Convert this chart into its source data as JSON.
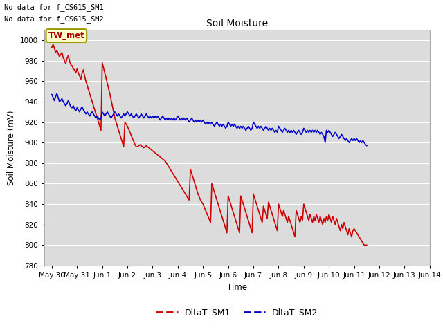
{
  "title": "Soil Moisture",
  "ylabel": "Soil Moisture (mV)",
  "xlabel": "Time",
  "ylim": [
    780,
    1010
  ],
  "yticks": [
    780,
    800,
    820,
    840,
    860,
    880,
    900,
    920,
    940,
    960,
    980,
    1000
  ],
  "bg_color": "#dcdcdc",
  "annotations": [
    "No data for f_CS615_SM1",
    "No data for f_CS615_SM2"
  ],
  "legend_label": "TW_met",
  "line1_label": "DltaT_SM1",
  "line2_label": "DltaT_SM2",
  "line1_color": "#cc0000",
  "line2_color": "#0000cc",
  "sm1_data": [
    [
      0.0,
      993
    ],
    [
      0.05,
      996
    ],
    [
      0.1,
      992
    ],
    [
      0.15,
      988
    ],
    [
      0.2,
      990
    ],
    [
      0.25,
      987
    ],
    [
      0.3,
      984
    ],
    [
      0.35,
      986
    ],
    [
      0.4,
      988
    ],
    [
      0.45,
      983
    ],
    [
      0.5,
      980
    ],
    [
      0.55,
      977
    ],
    [
      0.6,
      982
    ],
    [
      0.65,
      985
    ],
    [
      0.7,
      980
    ],
    [
      0.75,
      976
    ],
    [
      0.8,
      975
    ],
    [
      0.85,
      972
    ],
    [
      0.9,
      971
    ],
    [
      0.95,
      968
    ],
    [
      1.0,
      972
    ],
    [
      1.05,
      968
    ],
    [
      1.1,
      965
    ],
    [
      1.15,
      962
    ],
    [
      1.2,
      968
    ],
    [
      1.25,
      971
    ],
    [
      1.3,
      965
    ],
    [
      1.35,
      960
    ],
    [
      1.4,
      956
    ],
    [
      1.45,
      952
    ],
    [
      1.5,
      948
    ],
    [
      1.55,
      944
    ],
    [
      1.6,
      940
    ],
    [
      1.65,
      936
    ],
    [
      1.7,
      932
    ],
    [
      1.75,
      928
    ],
    [
      1.8,
      924
    ],
    [
      1.85,
      920
    ],
    [
      1.9,
      916
    ],
    [
      1.95,
      912
    ],
    [
      2.0,
      978
    ],
    [
      2.05,
      973
    ],
    [
      2.1,
      968
    ],
    [
      2.15,
      963
    ],
    [
      2.2,
      958
    ],
    [
      2.25,
      953
    ],
    [
      2.3,
      948
    ],
    [
      2.35,
      942
    ],
    [
      2.4,
      936
    ],
    [
      2.45,
      930
    ],
    [
      2.5,
      924
    ],
    [
      2.55,
      920
    ],
    [
      2.6,
      916
    ],
    [
      2.65,
      912
    ],
    [
      2.7,
      908
    ],
    [
      2.75,
      904
    ],
    [
      2.8,
      900
    ],
    [
      2.85,
      896
    ],
    [
      2.9,
      920
    ],
    [
      2.95,
      918
    ],
    [
      3.0,
      916
    ],
    [
      3.05,
      913
    ],
    [
      3.1,
      910
    ],
    [
      3.15,
      907
    ],
    [
      3.2,
      904
    ],
    [
      3.25,
      901
    ],
    [
      3.3,
      898
    ],
    [
      3.35,
      896
    ],
    [
      3.4,
      896
    ],
    [
      3.45,
      897
    ],
    [
      3.5,
      898
    ],
    [
      3.55,
      897
    ],
    [
      3.6,
      896
    ],
    [
      3.65,
      895
    ],
    [
      3.7,
      896
    ],
    [
      3.75,
      897
    ],
    [
      3.8,
      896
    ],
    [
      3.85,
      895
    ],
    [
      3.9,
      894
    ],
    [
      3.95,
      893
    ],
    [
      4.0,
      892
    ],
    [
      4.05,
      891
    ],
    [
      4.1,
      890
    ],
    [
      4.15,
      889
    ],
    [
      4.2,
      888
    ],
    [
      4.25,
      887
    ],
    [
      4.3,
      886
    ],
    [
      4.35,
      885
    ],
    [
      4.4,
      884
    ],
    [
      4.45,
      883
    ],
    [
      4.5,
      882
    ],
    [
      4.55,
      880
    ],
    [
      4.6,
      878
    ],
    [
      4.65,
      876
    ],
    [
      4.7,
      874
    ],
    [
      4.75,
      872
    ],
    [
      4.8,
      870
    ],
    [
      4.85,
      868
    ],
    [
      4.9,
      866
    ],
    [
      4.95,
      864
    ],
    [
      5.0,
      862
    ],
    [
      5.05,
      860
    ],
    [
      5.1,
      858
    ],
    [
      5.15,
      856
    ],
    [
      5.2,
      854
    ],
    [
      5.25,
      852
    ],
    [
      5.3,
      850
    ],
    [
      5.35,
      848
    ],
    [
      5.4,
      846
    ],
    [
      5.45,
      844
    ],
    [
      5.5,
      874
    ],
    [
      5.55,
      870
    ],
    [
      5.6,
      866
    ],
    [
      5.65,
      862
    ],
    [
      5.7,
      858
    ],
    [
      5.75,
      854
    ],
    [
      5.8,
      850
    ],
    [
      5.85,
      847
    ],
    [
      5.9,
      844
    ],
    [
      5.95,
      842
    ],
    [
      6.0,
      840
    ],
    [
      6.05,
      837
    ],
    [
      6.1,
      834
    ],
    [
      6.15,
      831
    ],
    [
      6.2,
      828
    ],
    [
      6.25,
      825
    ],
    [
      6.3,
      822
    ],
    [
      6.35,
      860
    ],
    [
      6.4,
      856
    ],
    [
      6.45,
      852
    ],
    [
      6.5,
      848
    ],
    [
      6.55,
      844
    ],
    [
      6.6,
      840
    ],
    [
      6.65,
      836
    ],
    [
      6.7,
      832
    ],
    [
      6.75,
      828
    ],
    [
      6.8,
      824
    ],
    [
      6.85,
      820
    ],
    [
      6.9,
      816
    ],
    [
      6.95,
      812
    ],
    [
      7.0,
      848
    ],
    [
      7.05,
      844
    ],
    [
      7.1,
      840
    ],
    [
      7.15,
      836
    ],
    [
      7.2,
      832
    ],
    [
      7.25,
      828
    ],
    [
      7.3,
      824
    ],
    [
      7.35,
      820
    ],
    [
      7.4,
      816
    ],
    [
      7.45,
      812
    ],
    [
      7.5,
      848
    ],
    [
      7.55,
      844
    ],
    [
      7.6,
      840
    ],
    [
      7.65,
      836
    ],
    [
      7.7,
      832
    ],
    [
      7.75,
      828
    ],
    [
      7.8,
      824
    ],
    [
      7.85,
      820
    ],
    [
      7.9,
      816
    ],
    [
      7.95,
      812
    ],
    [
      8.0,
      850
    ],
    [
      8.05,
      846
    ],
    [
      8.1,
      842
    ],
    [
      8.15,
      838
    ],
    [
      8.2,
      834
    ],
    [
      8.25,
      830
    ],
    [
      8.3,
      826
    ],
    [
      8.35,
      822
    ],
    [
      8.4,
      838
    ],
    [
      8.45,
      834
    ],
    [
      8.5,
      830
    ],
    [
      8.55,
      826
    ],
    [
      8.6,
      842
    ],
    [
      8.65,
      838
    ],
    [
      8.7,
      834
    ],
    [
      8.75,
      830
    ],
    [
      8.8,
      826
    ],
    [
      8.85,
      822
    ],
    [
      8.9,
      818
    ],
    [
      8.95,
      814
    ],
    [
      9.0,
      840
    ],
    [
      9.05,
      836
    ],
    [
      9.1,
      832
    ],
    [
      9.15,
      828
    ],
    [
      9.2,
      834
    ],
    [
      9.25,
      830
    ],
    [
      9.3,
      826
    ],
    [
      9.35,
      822
    ],
    [
      9.4,
      828
    ],
    [
      9.45,
      824
    ],
    [
      9.5,
      820
    ],
    [
      9.55,
      816
    ],
    [
      9.6,
      812
    ],
    [
      9.65,
      808
    ],
    [
      9.7,
      834
    ],
    [
      9.75,
      830
    ],
    [
      9.8,
      826
    ],
    [
      9.85,
      822
    ],
    [
      9.9,
      828
    ],
    [
      9.95,
      824
    ],
    [
      10.0,
      840
    ],
    [
      10.05,
      836
    ],
    [
      10.1,
      832
    ],
    [
      10.15,
      828
    ],
    [
      10.2,
      824
    ],
    [
      10.25,
      830
    ],
    [
      10.3,
      826
    ],
    [
      10.35,
      822
    ],
    [
      10.4,
      828
    ],
    [
      10.45,
      824
    ],
    [
      10.5,
      830
    ],
    [
      10.55,
      826
    ],
    [
      10.6,
      822
    ],
    [
      10.65,
      828
    ],
    [
      10.7,
      824
    ],
    [
      10.75,
      820
    ],
    [
      10.8,
      826
    ],
    [
      10.85,
      822
    ],
    [
      10.9,
      828
    ],
    [
      10.95,
      824
    ],
    [
      11.0,
      830
    ],
    [
      11.05,
      826
    ],
    [
      11.1,
      822
    ],
    [
      11.15,
      828
    ],
    [
      11.2,
      824
    ],
    [
      11.25,
      820
    ],
    [
      11.3,
      826
    ],
    [
      11.35,
      822
    ],
    [
      11.4,
      818
    ],
    [
      11.45,
      814
    ],
    [
      11.5,
      820
    ],
    [
      11.55,
      816
    ],
    [
      11.6,
      822
    ],
    [
      11.65,
      818
    ],
    [
      11.7,
      814
    ],
    [
      11.75,
      810
    ],
    [
      11.8,
      816
    ],
    [
      11.85,
      812
    ],
    [
      11.9,
      808
    ],
    [
      11.95,
      814
    ],
    [
      12.0,
      816
    ],
    [
      12.05,
      814
    ],
    [
      12.1,
      812
    ],
    [
      12.15,
      810
    ],
    [
      12.2,
      808
    ],
    [
      12.25,
      806
    ],
    [
      12.3,
      804
    ],
    [
      12.35,
      802
    ],
    [
      12.4,
      800
    ],
    [
      12.45,
      800
    ],
    [
      12.5,
      800
    ]
  ],
  "sm2_data": [
    [
      0.0,
      947
    ],
    [
      0.05,
      944
    ],
    [
      0.1,
      941
    ],
    [
      0.15,
      945
    ],
    [
      0.2,
      948
    ],
    [
      0.25,
      944
    ],
    [
      0.3,
      940
    ],
    [
      0.35,
      941
    ],
    [
      0.4,
      943
    ],
    [
      0.45,
      940
    ],
    [
      0.5,
      938
    ],
    [
      0.55,
      936
    ],
    [
      0.6,
      938
    ],
    [
      0.65,
      941
    ],
    [
      0.7,
      938
    ],
    [
      0.75,
      935
    ],
    [
      0.8,
      934
    ],
    [
      0.85,
      936
    ],
    [
      0.9,
      933
    ],
    [
      0.95,
      931
    ],
    [
      1.0,
      934
    ],
    [
      1.05,
      932
    ],
    [
      1.1,
      930
    ],
    [
      1.15,
      933
    ],
    [
      1.2,
      935
    ],
    [
      1.25,
      932
    ],
    [
      1.3,
      930
    ],
    [
      1.35,
      928
    ],
    [
      1.4,
      930
    ],
    [
      1.45,
      928
    ],
    [
      1.5,
      926
    ],
    [
      1.55,
      928
    ],
    [
      1.6,
      930
    ],
    [
      1.65,
      928
    ],
    [
      1.7,
      926
    ],
    [
      1.75,
      924
    ],
    [
      1.8,
      926
    ],
    [
      1.85,
      924
    ],
    [
      1.9,
      922
    ],
    [
      1.95,
      924
    ],
    [
      2.0,
      930
    ],
    [
      2.05,
      928
    ],
    [
      2.1,
      926
    ],
    [
      2.15,
      928
    ],
    [
      2.2,
      930
    ],
    [
      2.25,
      928
    ],
    [
      2.3,
      926
    ],
    [
      2.35,
      924
    ],
    [
      2.4,
      926
    ],
    [
      2.45,
      928
    ],
    [
      2.5,
      930
    ],
    [
      2.55,
      928
    ],
    [
      2.6,
      926
    ],
    [
      2.65,
      928
    ],
    [
      2.7,
      926
    ],
    [
      2.75,
      924
    ],
    [
      2.8,
      926
    ],
    [
      2.85,
      928
    ],
    [
      2.9,
      926
    ],
    [
      2.95,
      928
    ],
    [
      3.0,
      930
    ],
    [
      3.05,
      928
    ],
    [
      3.1,
      926
    ],
    [
      3.15,
      928
    ],
    [
      3.2,
      926
    ],
    [
      3.25,
      924
    ],
    [
      3.3,
      926
    ],
    [
      3.35,
      928
    ],
    [
      3.4,
      926
    ],
    [
      3.45,
      924
    ],
    [
      3.5,
      926
    ],
    [
      3.55,
      928
    ],
    [
      3.6,
      926
    ],
    [
      3.65,
      924
    ],
    [
      3.7,
      926
    ],
    [
      3.75,
      928
    ],
    [
      3.8,
      926
    ],
    [
      3.85,
      924
    ],
    [
      3.9,
      926
    ],
    [
      3.95,
      924
    ],
    [
      4.0,
      926
    ],
    [
      4.05,
      924
    ],
    [
      4.1,
      926
    ],
    [
      4.15,
      924
    ],
    [
      4.2,
      926
    ],
    [
      4.25,
      924
    ],
    [
      4.3,
      922
    ],
    [
      4.35,
      924
    ],
    [
      4.4,
      926
    ],
    [
      4.45,
      924
    ],
    [
      4.5,
      922
    ],
    [
      4.55,
      924
    ],
    [
      4.6,
      922
    ],
    [
      4.65,
      924
    ],
    [
      4.7,
      922
    ],
    [
      4.75,
      924
    ],
    [
      4.8,
      922
    ],
    [
      4.85,
      924
    ],
    [
      4.9,
      922
    ],
    [
      4.95,
      924
    ],
    [
      5.0,
      926
    ],
    [
      5.05,
      924
    ],
    [
      5.1,
      922
    ],
    [
      5.15,
      924
    ],
    [
      5.2,
      922
    ],
    [
      5.25,
      924
    ],
    [
      5.3,
      922
    ],
    [
      5.35,
      924
    ],
    [
      5.4,
      922
    ],
    [
      5.45,
      920
    ],
    [
      5.5,
      922
    ],
    [
      5.55,
      924
    ],
    [
      5.6,
      922
    ],
    [
      5.65,
      920
    ],
    [
      5.7,
      922
    ],
    [
      5.75,
      920
    ],
    [
      5.8,
      922
    ],
    [
      5.85,
      920
    ],
    [
      5.9,
      922
    ],
    [
      5.95,
      920
    ],
    [
      6.0,
      922
    ],
    [
      6.05,
      920
    ],
    [
      6.1,
      918
    ],
    [
      6.15,
      920
    ],
    [
      6.2,
      918
    ],
    [
      6.25,
      920
    ],
    [
      6.3,
      918
    ],
    [
      6.35,
      920
    ],
    [
      6.4,
      918
    ],
    [
      6.45,
      916
    ],
    [
      6.5,
      918
    ],
    [
      6.55,
      920
    ],
    [
      6.6,
      918
    ],
    [
      6.65,
      916
    ],
    [
      6.7,
      918
    ],
    [
      6.75,
      916
    ],
    [
      6.8,
      918
    ],
    [
      6.85,
      916
    ],
    [
      6.9,
      914
    ],
    [
      6.95,
      916
    ],
    [
      7.0,
      920
    ],
    [
      7.05,
      918
    ],
    [
      7.1,
      916
    ],
    [
      7.15,
      918
    ],
    [
      7.2,
      916
    ],
    [
      7.25,
      918
    ],
    [
      7.3,
      916
    ],
    [
      7.35,
      914
    ],
    [
      7.4,
      916
    ],
    [
      7.45,
      914
    ],
    [
      7.5,
      916
    ],
    [
      7.55,
      914
    ],
    [
      7.6,
      916
    ],
    [
      7.65,
      914
    ],
    [
      7.7,
      912
    ],
    [
      7.75,
      914
    ],
    [
      7.8,
      916
    ],
    [
      7.85,
      914
    ],
    [
      7.9,
      912
    ],
    [
      7.95,
      914
    ],
    [
      8.0,
      920
    ],
    [
      8.05,
      918
    ],
    [
      8.1,
      916
    ],
    [
      8.15,
      914
    ],
    [
      8.2,
      916
    ],
    [
      8.25,
      914
    ],
    [
      8.3,
      916
    ],
    [
      8.35,
      914
    ],
    [
      8.4,
      912
    ],
    [
      8.45,
      914
    ],
    [
      8.5,
      916
    ],
    [
      8.55,
      914
    ],
    [
      8.6,
      912
    ],
    [
      8.65,
      914
    ],
    [
      8.7,
      912
    ],
    [
      8.75,
      914
    ],
    [
      8.8,
      912
    ],
    [
      8.85,
      910
    ],
    [
      8.9,
      912
    ],
    [
      8.95,
      910
    ],
    [
      9.0,
      916
    ],
    [
      9.05,
      914
    ],
    [
      9.1,
      912
    ],
    [
      9.15,
      910
    ],
    [
      9.2,
      912
    ],
    [
      9.25,
      914
    ],
    [
      9.3,
      912
    ],
    [
      9.35,
      910
    ],
    [
      9.4,
      912
    ],
    [
      9.45,
      910
    ],
    [
      9.5,
      912
    ],
    [
      9.55,
      910
    ],
    [
      9.6,
      912
    ],
    [
      9.65,
      910
    ],
    [
      9.7,
      908
    ],
    [
      9.75,
      910
    ],
    [
      9.8,
      912
    ],
    [
      9.85,
      910
    ],
    [
      9.9,
      908
    ],
    [
      9.95,
      910
    ],
    [
      10.0,
      914
    ],
    [
      10.05,
      912
    ],
    [
      10.1,
      910
    ],
    [
      10.15,
      912
    ],
    [
      10.2,
      910
    ],
    [
      10.25,
      912
    ],
    [
      10.3,
      910
    ],
    [
      10.35,
      912
    ],
    [
      10.4,
      910
    ],
    [
      10.45,
      912
    ],
    [
      10.5,
      910
    ],
    [
      10.55,
      912
    ],
    [
      10.6,
      910
    ],
    [
      10.65,
      908
    ],
    [
      10.7,
      910
    ],
    [
      10.75,
      908
    ],
    [
      10.8,
      906
    ],
    [
      10.85,
      900
    ],
    [
      10.9,
      912
    ],
    [
      10.95,
      910
    ],
    [
      11.0,
      912
    ],
    [
      11.05,
      910
    ],
    [
      11.1,
      908
    ],
    [
      11.15,
      906
    ],
    [
      11.2,
      908
    ],
    [
      11.25,
      910
    ],
    [
      11.3,
      908
    ],
    [
      11.35,
      906
    ],
    [
      11.4,
      904
    ],
    [
      11.45,
      906
    ],
    [
      11.5,
      908
    ],
    [
      11.55,
      906
    ],
    [
      11.6,
      904
    ],
    [
      11.65,
      902
    ],
    [
      11.7,
      904
    ],
    [
      11.75,
      902
    ],
    [
      11.8,
      900
    ],
    [
      11.85,
      902
    ],
    [
      11.9,
      904
    ],
    [
      11.95,
      902
    ],
    [
      12.0,
      904
    ],
    [
      12.05,
      902
    ],
    [
      12.1,
      904
    ],
    [
      12.15,
      902
    ],
    [
      12.2,
      900
    ],
    [
      12.25,
      902
    ],
    [
      12.3,
      900
    ],
    [
      12.35,
      902
    ],
    [
      12.4,
      900
    ],
    [
      12.45,
      898
    ],
    [
      12.5,
      897
    ]
  ],
  "xtick_positions": [
    0,
    1,
    2,
    3,
    4,
    5,
    6,
    7,
    8,
    9,
    10,
    11,
    12,
    13,
    14,
    15
  ],
  "xtick_labels": [
    "May 30",
    "May 31",
    "Jun 1",
    "Jun 2",
    "Jun 3",
    "Jun 4",
    "Jun 5",
    "Jun 6",
    "Jun 7",
    "Jun 8",
    "Jun 9",
    "Jun 10",
    "Jun 11",
    "Jun 12",
    "Jun 13",
    "Jun 14"
  ]
}
